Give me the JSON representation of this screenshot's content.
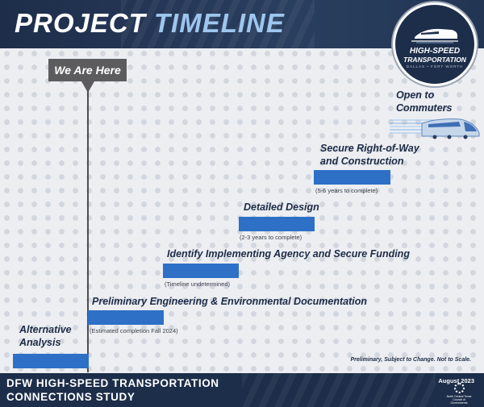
{
  "header": {
    "title_part1": "PROJECT",
    "title_part2": "TIMELINE"
  },
  "logo": {
    "line1": "HIGH-SPEED",
    "line2": "TRANSPORTATION",
    "line3": "DALLAS • FORT WORTH",
    "icon": "train-icon"
  },
  "marker": {
    "label": "We Are Here"
  },
  "steps": [
    {
      "title": "Alternative Analysis",
      "title_lines": [
        "Alternative",
        "Analysis"
      ],
      "note": ""
    },
    {
      "title": "Preliminary Engineering & Environmental Documentation",
      "note": "(Estimated completion Fall 2024)"
    },
    {
      "title": "Identify Implementing Agency and Secure Funding",
      "note": "(Timeline undetermined)"
    },
    {
      "title": "Detailed Design",
      "note": "(2-3 years to complete)"
    },
    {
      "title": "Secure Right-of-Way and Construction",
      "title_lines": [
        "Secure Right-of-Way",
        "and Construction"
      ],
      "note": "(5-6 years to complete)"
    },
    {
      "title": "Open to Commuters",
      "title_lines": [
        "Open to",
        "Commuters"
      ],
      "note": ""
    }
  ],
  "disclaimer": "Preliminary, Subject to Change. Not to Scale.",
  "footer": {
    "line1": "DFW HIGH-SPEED TRANSPORTATION",
    "line2": "CONNECTIONS STUDY",
    "date": "August 2023",
    "org": "North Central Texas Council of Governments"
  },
  "colors": {
    "navy": "#1d2e4a",
    "bar_blue": "#2d70c6",
    "accent_light_blue": "#9ec6ee",
    "marker_gray": "#5c5c5e"
  }
}
